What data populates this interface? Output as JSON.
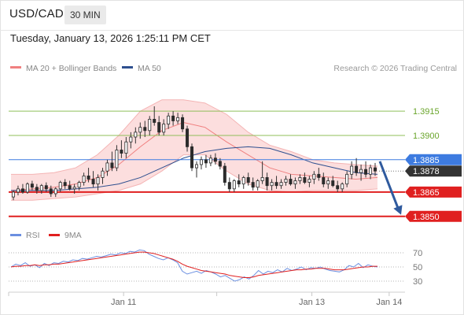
{
  "header": {
    "symbol": "USD/CAD",
    "timeframe": "30 MIN",
    "datetime": "Tuesday, January 13, 2026 1:25:11 PM CET"
  },
  "chart_data": {
    "type": "candlestick",
    "legend": [
      {
        "label": "MA 20 + Bollinger Bands",
        "color": "#f08080"
      },
      {
        "label": "MA 50",
        "color": "#2e4f8f"
      }
    ],
    "credit": "Research © 2026 Trading Central",
    "ylim": [
      1.3846,
      1.3935
    ],
    "levels": [
      {
        "value": 1.3915,
        "label": "1.3915",
        "kind": "target",
        "color": "#8fbf5a"
      },
      {
        "value": 1.39,
        "label": "1.3900",
        "kind": "target",
        "color": "#8fbf5a"
      },
      {
        "value": 1.3885,
        "label": "1.3885",
        "kind": "pivot",
        "color": "#3d7be0"
      },
      {
        "value": 1.3878,
        "label": "1.3878",
        "kind": "last",
        "color": "#333333"
      },
      {
        "value": 1.3865,
        "label": "1.3865",
        "kind": "support",
        "color": "#e02020"
      },
      {
        "value": 1.385,
        "label": "1.3850",
        "kind": "support",
        "color": "#e02020"
      }
    ],
    "x_ticks": [
      {
        "label": "Jan 11",
        "pos": 0.29
      },
      {
        "label": "Jan 13",
        "pos": 0.765
      },
      {
        "label": "Jan 14",
        "pos": 0.96
      }
    ],
    "forecast": {
      "from": 1.3884,
      "to": 1.3851,
      "color": "#2f5a9e"
    },
    "candles": [
      [
        1.3862,
        1.3866,
        1.386,
        1.3865
      ],
      [
        1.3865,
        1.3869,
        1.3863,
        1.3867
      ],
      [
        1.3867,
        1.387,
        1.3864,
        1.3865
      ],
      [
        1.3865,
        1.3871,
        1.3864,
        1.387
      ],
      [
        1.387,
        1.3872,
        1.3866,
        1.3868
      ],
      [
        1.3868,
        1.387,
        1.3864,
        1.3866
      ],
      [
        1.3866,
        1.387,
        1.3864,
        1.3869
      ],
      [
        1.3869,
        1.3871,
        1.3865,
        1.3867
      ],
      [
        1.3867,
        1.3869,
        1.3862,
        1.3864
      ],
      [
        1.3864,
        1.3868,
        1.3862,
        1.3867
      ],
      [
        1.3867,
        1.3872,
        1.3865,
        1.3871
      ],
      [
        1.3871,
        1.3873,
        1.3867,
        1.3869
      ],
      [
        1.3869,
        1.3872,
        1.3866,
        1.3867
      ],
      [
        1.3867,
        1.387,
        1.3864,
        1.3868
      ],
      [
        1.3868,
        1.3872,
        1.3866,
        1.3871
      ],
      [
        1.3871,
        1.3877,
        1.3869,
        1.3875
      ],
      [
        1.3875,
        1.388,
        1.3871,
        1.3873
      ],
      [
        1.3873,
        1.3878,
        1.3868,
        1.387
      ],
      [
        1.387,
        1.3876,
        1.3866,
        1.3874
      ],
      [
        1.3874,
        1.388,
        1.387,
        1.3878
      ],
      [
        1.3878,
        1.3885,
        1.3875,
        1.3883
      ],
      [
        1.3883,
        1.389,
        1.3878,
        1.388
      ],
      [
        1.388,
        1.3894,
        1.3878,
        1.3891
      ],
      [
        1.3891,
        1.3897,
        1.3886,
        1.3889
      ],
      [
        1.3889,
        1.3899,
        1.3886,
        1.3896
      ],
      [
        1.3896,
        1.3902,
        1.3892,
        1.3899
      ],
      [
        1.3899,
        1.3905,
        1.3895,
        1.3902
      ],
      [
        1.3902,
        1.3908,
        1.3898,
        1.3905
      ],
      [
        1.3905,
        1.3909,
        1.3899,
        1.3903
      ],
      [
        1.3903,
        1.3912,
        1.39,
        1.391
      ],
      [
        1.391,
        1.3918,
        1.3906,
        1.3908
      ],
      [
        1.3908,
        1.3912,
        1.39,
        1.3902
      ],
      [
        1.3902,
        1.391,
        1.39,
        1.3907
      ],
      [
        1.3907,
        1.3914,
        1.3904,
        1.3912
      ],
      [
        1.3912,
        1.3915,
        1.3906,
        1.3909
      ],
      [
        1.3909,
        1.3914,
        1.3907,
        1.3911
      ],
      [
        1.3911,
        1.3913,
        1.3902,
        1.3904
      ],
      [
        1.3904,
        1.3906,
        1.389,
        1.3893
      ],
      [
        1.3893,
        1.3895,
        1.3878,
        1.388
      ],
      [
        1.388,
        1.3884,
        1.3874,
        1.3882
      ],
      [
        1.3882,
        1.3887,
        1.3879,
        1.3885
      ],
      [
        1.3885,
        1.3888,
        1.388,
        1.3883
      ],
      [
        1.3883,
        1.3888,
        1.3881,
        1.3886
      ],
      [
        1.3886,
        1.3889,
        1.3882,
        1.3884
      ],
      [
        1.3884,
        1.3886,
        1.3879,
        1.3881
      ],
      [
        1.3881,
        1.3883,
        1.3869,
        1.3871
      ],
      [
        1.3871,
        1.3874,
        1.3865,
        1.3867
      ],
      [
        1.3867,
        1.3873,
        1.3865,
        1.3872
      ],
      [
        1.3872,
        1.3876,
        1.3868,
        1.387
      ],
      [
        1.387,
        1.3875,
        1.3867,
        1.3874
      ],
      [
        1.3874,
        1.3877,
        1.3869,
        1.3871
      ],
      [
        1.3871,
        1.3874,
        1.3866,
        1.3868
      ],
      [
        1.3868,
        1.3873,
        1.3866,
        1.3872
      ],
      [
        1.3872,
        1.3884,
        1.387,
        1.3874
      ],
      [
        1.3874,
        1.3877,
        1.3866,
        1.3869
      ],
      [
        1.3869,
        1.3873,
        1.3866,
        1.3871
      ],
      [
        1.3871,
        1.3875,
        1.3867,
        1.3869
      ],
      [
        1.3869,
        1.3873,
        1.3867,
        1.3871
      ],
      [
        1.3871,
        1.3875,
        1.3869,
        1.3873
      ],
      [
        1.3873,
        1.3876,
        1.3869,
        1.387
      ],
      [
        1.387,
        1.3874,
        1.3867,
        1.3872
      ],
      [
        1.3872,
        1.3876,
        1.387,
        1.3874
      ],
      [
        1.3874,
        1.3877,
        1.387,
        1.3871
      ],
      [
        1.3871,
        1.3875,
        1.3868,
        1.3873
      ],
      [
        1.3873,
        1.3878,
        1.387,
        1.3876
      ],
      [
        1.3876,
        1.388,
        1.3872,
        1.3874
      ],
      [
        1.3874,
        1.3877,
        1.3868,
        1.387
      ],
      [
        1.387,
        1.3874,
        1.3867,
        1.3872
      ],
      [
        1.3872,
        1.3875,
        1.3868,
        1.3869
      ],
      [
        1.3869,
        1.3872,
        1.3865,
        1.3867
      ],
      [
        1.3867,
        1.3871,
        1.3865,
        1.387
      ],
      [
        1.387,
        1.3878,
        1.3868,
        1.3876
      ],
      [
        1.3876,
        1.3884,
        1.3873,
        1.3881
      ],
      [
        1.3881,
        1.3886,
        1.3875,
        1.3877
      ],
      [
        1.3877,
        1.3882,
        1.3872,
        1.3879
      ],
      [
        1.3879,
        1.3884,
        1.3874,
        1.3876
      ],
      [
        1.3876,
        1.3882,
        1.3873,
        1.388
      ],
      [
        1.388,
        1.3883,
        1.3875,
        1.3878
      ]
    ],
    "bollinger": {
      "upper": [
        1.3876,
        1.3876,
        1.3877,
        1.388,
        1.3888,
        1.39,
        1.3915,
        1.3922,
        1.3922,
        1.392,
        1.3913,
        1.3902,
        1.3894,
        1.389,
        1.3885,
        1.3883,
        1.3882,
        1.3881
      ],
      "middle": [
        1.3866,
        1.3867,
        1.3868,
        1.387,
        1.3874,
        1.3882,
        1.3893,
        1.3903,
        1.3908,
        1.3905,
        1.3896,
        1.3888,
        1.388,
        1.3876,
        1.3875,
        1.3874,
        1.3873,
        1.3874
      ],
      "lower": [
        1.386,
        1.386,
        1.3861,
        1.3862,
        1.3864,
        1.3866,
        1.387,
        1.3878,
        1.3888,
        1.3888,
        1.3878,
        1.387,
        1.3866,
        1.3865,
        1.3866,
        1.3866,
        1.3866,
        1.3867
      ]
    },
    "ma50": [
      1.3866,
      1.3866,
      1.3866,
      1.3867,
      1.3868,
      1.387,
      1.3874,
      1.388,
      1.3886,
      1.389,
      1.3892,
      1.3893,
      1.3892,
      1.3888,
      1.3883,
      1.388,
      1.3877,
      1.3876
    ],
    "indicator": {
      "legend": [
        {
          "label": "RSI",
          "color": "#6b8fe0"
        },
        {
          "label": "9MA",
          "color": "#e02020"
        }
      ],
      "ylim": [
        20,
        80
      ],
      "ticks": [
        {
          "value": 70,
          "label": "70"
        },
        {
          "value": 50,
          "label": "50"
        },
        {
          "value": 30,
          "label": "30"
        }
      ],
      "rsi": [
        50,
        54,
        52,
        56,
        51,
        53,
        49,
        55,
        52,
        56,
        55,
        58,
        57,
        60,
        59,
        62,
        61,
        63,
        65,
        64,
        66,
        68,
        67,
        70,
        69,
        72,
        71,
        74,
        73,
        68,
        65,
        62,
        60,
        63,
        60,
        56,
        44,
        40,
        42,
        44,
        41,
        45,
        43,
        40,
        36,
        38,
        34,
        30,
        32,
        36,
        33,
        38,
        45,
        40,
        44,
        42,
        46,
        43,
        48,
        45,
        47,
        50,
        46,
        49,
        48,
        50,
        47,
        45,
        44,
        43,
        46,
        52,
        50,
        55,
        49,
        53,
        51,
        50
      ],
      "ma9": [
        50,
        51,
        51,
        52,
        52,
        53,
        52,
        53,
        53,
        54,
        54,
        55,
        56,
        57,
        58,
        59,
        60,
        61,
        62,
        63,
        64,
        65,
        66,
        67,
        68,
        69,
        70,
        71,
        71,
        70,
        69,
        67,
        65,
        63,
        61,
        58,
        54,
        51,
        49,
        47,
        45,
        44,
        43,
        42,
        41,
        40,
        38,
        37,
        36,
        35,
        35,
        36,
        38,
        39,
        40,
        41,
        42,
        43,
        44,
        45,
        46,
        46,
        47,
        47,
        48,
        48,
        48,
        47,
        46,
        46,
        46,
        47,
        48,
        49,
        50,
        50,
        51,
        51
      ]
    }
  }
}
